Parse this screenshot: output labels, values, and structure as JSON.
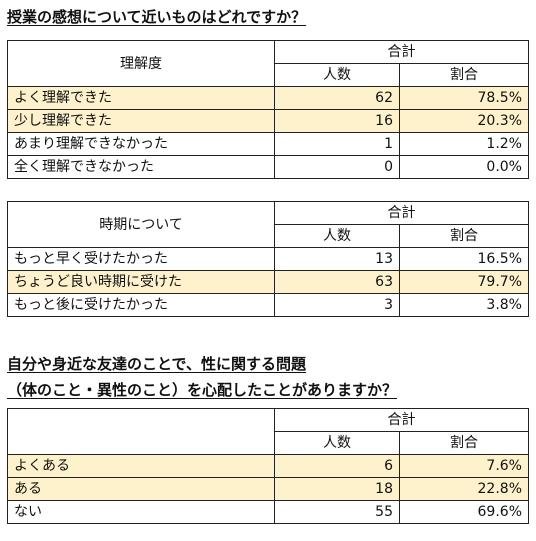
{
  "title1": "授業の感想について近いものはどれですか？",
  "table1": {
    "label_header": "理解度",
    "sum_header": "合計",
    "count_header": "人数",
    "pct_header": "割合",
    "rows": [
      {
        "label": "よく理解できた",
        "count": "62",
        "pct": "78.5%",
        "highlight": true
      },
      {
        "label": "少し理解できた",
        "count": "16",
        "pct": "20.3%",
        "highlight": true
      },
      {
        "label": "あまり理解できなかった",
        "count": "1",
        "pct": "1.2%",
        "highlight": false
      },
      {
        "label": "全く理解できなかった",
        "count": "0",
        "pct": "0.0%",
        "highlight": false
      }
    ]
  },
  "table2": {
    "label_header": "時期について",
    "sum_header": "合計",
    "count_header": "人数",
    "pct_header": "割合",
    "rows": [
      {
        "label": "もっと早く受けたかった",
        "count": "13",
        "pct": "16.5%",
        "highlight": false
      },
      {
        "label": "ちょうど良い時期に受けた",
        "count": "63",
        "pct": "79.7%",
        "highlight": true
      },
      {
        "label": "もっと後に受けたかった",
        "count": "3",
        "pct": "3.8%",
        "highlight": false
      }
    ]
  },
  "title2_line1": "自分や身近な友達のことで、性に関する問題",
  "title2_line2": "（体のこと・異性のこと）を心配したことがありますか？",
  "table3": {
    "label_header": "",
    "sum_header": "合計",
    "count_header": "人数",
    "pct_header": "割合",
    "rows": [
      {
        "label": "よくある",
        "count": "6",
        "pct": "7.6%",
        "highlight": true
      },
      {
        "label": "ある",
        "count": "18",
        "pct": "22.8%",
        "highlight": true
      },
      {
        "label": "ない",
        "count": "55",
        "pct": "69.6%",
        "highlight": false
      }
    ]
  },
  "colors": {
    "highlight_row": "#fdf2cc",
    "border": "#222222"
  }
}
